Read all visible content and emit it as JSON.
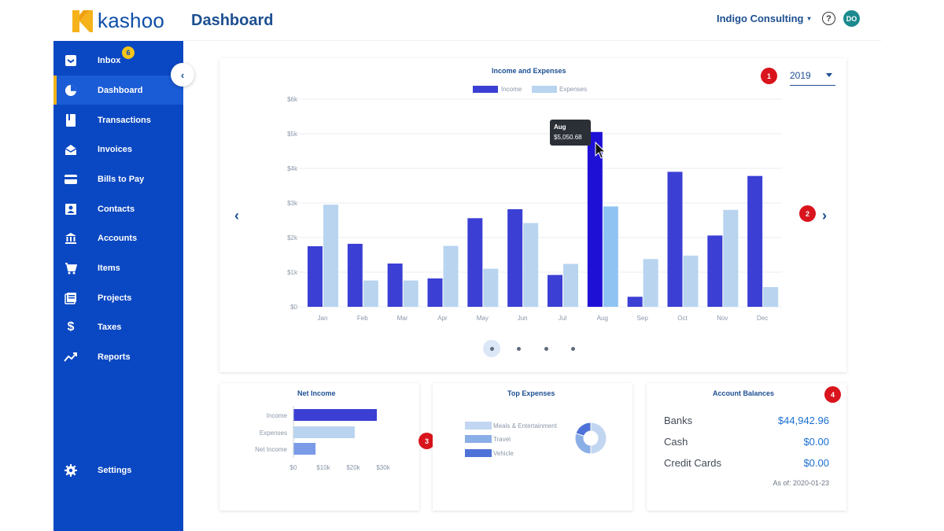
{
  "app": {
    "brand": "kashoo",
    "page_title": "Dashboard",
    "organization": "Indigo Consulting",
    "help_label": "?",
    "user_initials": "DO"
  },
  "sidebar": {
    "items": [
      {
        "label": "Inbox",
        "icon": "inbox-icon",
        "badge": "6"
      },
      {
        "label": "Dashboard",
        "icon": "dashboard-icon",
        "active": true
      },
      {
        "label": "Transactions",
        "icon": "transactions-icon"
      },
      {
        "label": "Invoices",
        "icon": "invoices-icon"
      },
      {
        "label": "Bills to Pay",
        "icon": "bills-icon"
      },
      {
        "label": "Contacts",
        "icon": "contacts-icon"
      },
      {
        "label": "Accounts",
        "icon": "accounts-icon"
      },
      {
        "label": "Items",
        "icon": "cart-icon"
      },
      {
        "label": "Projects",
        "icon": "projects-icon"
      },
      {
        "label": "Taxes",
        "icon": "dollar-icon"
      },
      {
        "label": "Reports",
        "icon": "reports-icon"
      }
    ],
    "settings_label": "Settings"
  },
  "markers": [
    "1",
    "2",
    "3",
    "4"
  ],
  "income_expenses": {
    "year": "2019",
    "tooltip": {
      "month": "Aug",
      "value": "$5,050.68"
    }
  },
  "chart_data": [
    {
      "type": "bar",
      "title": "Income and Expenses",
      "categories": [
        "Jan",
        "Feb",
        "Mar",
        "Apr",
        "May",
        "Jun",
        "Jul",
        "Aug",
        "Sep",
        "Oct",
        "Nov",
        "Dec"
      ],
      "series": [
        {
          "name": "Income",
          "values": [
            1750,
            1820,
            1250,
            820,
            2560,
            2820,
            920,
            5050.68,
            290,
            3900,
            2060,
            3780
          ]
        },
        {
          "name": "Expenses",
          "values": [
            2950,
            760,
            760,
            1760,
            1100,
            2420,
            1240,
            2900,
            1380,
            1480,
            2800,
            570
          ]
        }
      ],
      "yticks": [
        "$0",
        "$1k",
        "$2k",
        "$3k",
        "$4k",
        "$5k",
        "$6k"
      ],
      "ylim": [
        0,
        6000
      ],
      "grid": true,
      "legend": "top-center",
      "colors": {
        "Income": "#3b3fd4",
        "Expenses": "#b8d4ef",
        "highlight_income": "#1f10d6",
        "highlight_expenses": "#8fc4f2"
      }
    },
    {
      "type": "bar",
      "title": "Net Income",
      "orientation": "horizontal",
      "categories": [
        "Income",
        "Expenses",
        "Net Income"
      ],
      "values": [
        27900,
        20500,
        7400
      ],
      "xticks": [
        "$0",
        "$10k",
        "$20k",
        "$30k"
      ],
      "xlim": [
        0,
        30000
      ]
    },
    {
      "type": "pie",
      "title": "Top Expenses",
      "categories": [
        "Meals & Entertainment",
        "Travel",
        "Vehicle"
      ],
      "values": [
        50,
        30,
        20
      ],
      "colors": [
        "#c2d6f1",
        "#8aaee6",
        "#4e72d8"
      ]
    }
  ],
  "account_balances": {
    "title": "Account Balances",
    "rows": [
      {
        "label": "Banks",
        "value": "$44,942.96"
      },
      {
        "label": "Cash",
        "value": "$0.00"
      },
      {
        "label": "Credit Cards",
        "value": "$0.00"
      }
    ],
    "as_of": "As of: 2020-01-23"
  }
}
